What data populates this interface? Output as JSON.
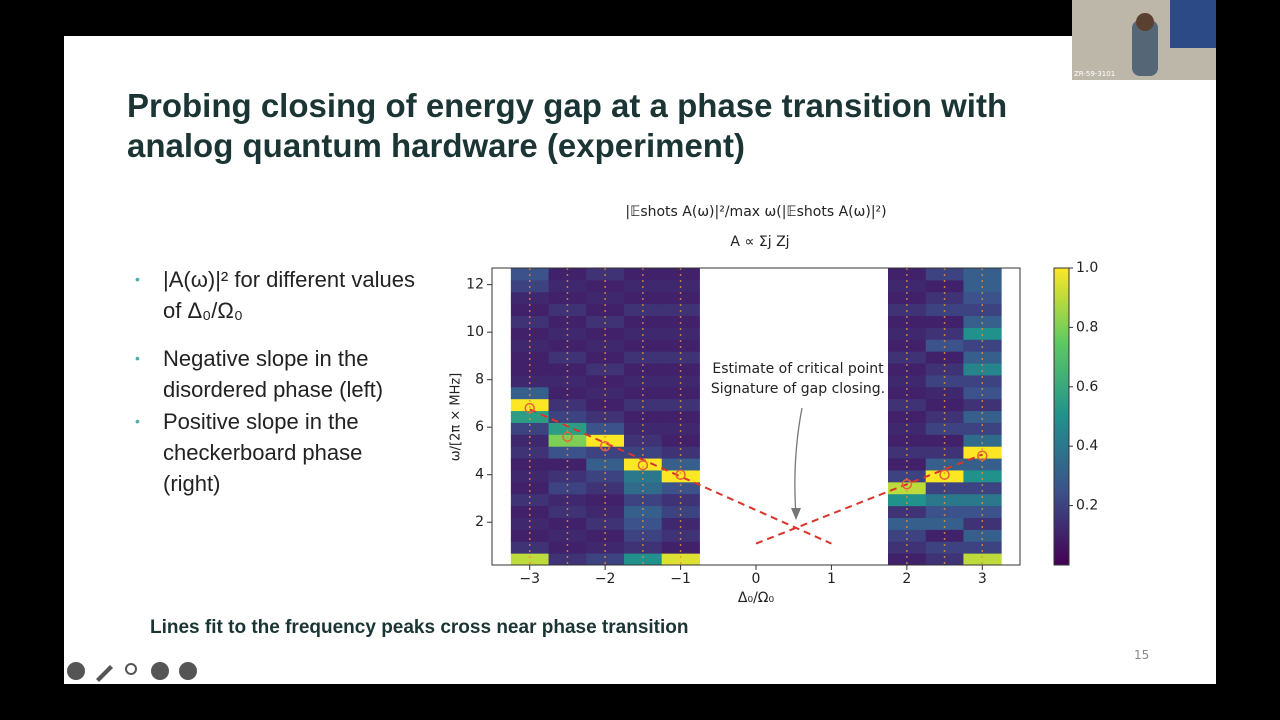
{
  "slide": {
    "title": "Probing closing of energy gap at a phase transition with analog quantum hardware (experiment)",
    "bullets": [
      "|A(ω)|² for different values of Δ₀/Ω₀",
      "Negative slope in the disordered phase (left)",
      "Positive slope in the checkerboard phase (right)"
    ],
    "caption": "Lines fit to the frequency peaks cross near phase transition",
    "page_number": "15",
    "camera_label": "ZR-59-3101"
  },
  "chart_data": {
    "type": "heatmap",
    "title": "|𝔼shots A(ω)|²/max ω(|𝔼shots A(ω)|²)",
    "subtitle": "A ∝ Σj Zj",
    "x_label": "Δ₀/Ω₀",
    "y_label": "ω/[2π × MHz]",
    "colormap": "viridis",
    "x": [
      -3,
      -2.5,
      -2,
      -1.5,
      -1,
      2,
      2.5,
      3
    ],
    "values": [
      [
        0.9,
        0.15,
        0.1,
        0.12,
        0.1,
        0.15,
        0.1,
        0.12,
        0.1,
        0.15,
        0.12,
        0.2,
        0.55,
        1.0,
        0.3,
        0.12,
        0.1,
        0.1,
        0.12,
        0.1,
        0.15,
        0.1,
        0.12,
        0.2,
        0.25
      ],
      [
        0.15,
        0.1,
        0.12,
        0.1,
        0.15,
        0.12,
        0.2,
        0.15,
        0.1,
        0.25,
        0.8,
        0.55,
        0.2,
        0.15,
        0.1,
        0.12,
        0.1,
        0.15,
        0.1,
        0.12,
        0.1,
        0.15,
        0.1,
        0.12,
        0.1
      ],
      [
        0.2,
        0.12,
        0.1,
        0.15,
        0.12,
        0.1,
        0.15,
        0.2,
        0.3,
        0.2,
        1.0,
        0.25,
        0.15,
        0.1,
        0.12,
        0.1,
        0.15,
        0.1,
        0.12,
        0.1,
        0.15,
        0.1,
        0.12,
        0.1,
        0.15
      ],
      [
        0.5,
        0.15,
        0.2,
        0.25,
        0.3,
        0.2,
        0.35,
        0.4,
        1.0,
        0.2,
        0.15,
        0.12,
        0.1,
        0.15,
        0.1,
        0.12,
        0.1,
        0.15,
        0.1,
        0.12,
        0.1,
        0.15,
        0.1,
        0.12,
        0.1
      ],
      [
        0.95,
        0.1,
        0.15,
        0.12,
        0.2,
        0.15,
        0.25,
        1.0,
        0.3,
        0.15,
        0.1,
        0.12,
        0.1,
        0.15,
        0.1,
        0.12,
        0.1,
        0.15,
        0.1,
        0.12,
        0.1,
        0.15,
        0.1,
        0.12,
        0.1
      ],
      [
        0.1,
        0.15,
        0.2,
        0.3,
        0.15,
        0.5,
        0.9,
        0.2,
        0.1,
        0.15,
        0.1,
        0.12,
        0.1,
        0.15,
        0.1,
        0.12,
        0.1,
        0.15,
        0.1,
        0.12,
        0.1,
        0.15,
        0.1,
        0.12,
        0.1
      ],
      [
        0.15,
        0.2,
        0.1,
        0.3,
        0.25,
        0.4,
        0.2,
        1.0,
        0.3,
        0.15,
        0.1,
        0.2,
        0.15,
        0.1,
        0.12,
        0.2,
        0.15,
        0.1,
        0.25,
        0.15,
        0.1,
        0.2,
        0.15,
        0.1,
        0.2
      ],
      [
        0.9,
        0.2,
        0.3,
        0.15,
        0.25,
        0.4,
        0.2,
        0.5,
        0.3,
        1.0,
        0.35,
        0.2,
        0.3,
        0.15,
        0.25,
        0.2,
        0.45,
        0.3,
        0.2,
        0.5,
        0.3,
        0.2,
        0.25,
        0.3,
        0.3
      ]
    ],
    "peaks": {
      "x": [
        -3,
        -2.5,
        -2,
        -1.5,
        -1,
        2,
        2.5,
        3
      ],
      "y": [
        6.8,
        5.6,
        5.2,
        4.4,
        4.0,
        3.6,
        4.0,
        4.8
      ],
      "color": "#e8603c"
    },
    "fit_lines": [
      {
        "x": [
          -3,
          1
        ],
        "y": [
          6.75,
          1.1
        ],
        "color": "#d9362b"
      },
      {
        "x": [
          0,
          3
        ],
        "y": [
          1.1,
          4.85
        ],
        "color": "#d9362b"
      }
    ],
    "annotation": [
      "Estimate of critical point",
      "Signature of gap closing."
    ],
    "xlim": [
      -3.5,
      3.5
    ],
    "ylim": [
      0.2,
      12.7
    ],
    "xticks": [
      {
        "value": -3,
        "label": "−3"
      },
      {
        "value": -2,
        "label": "−2"
      },
      {
        "value": -1,
        "label": "−1"
      },
      0,
      1,
      2,
      3
    ],
    "yticks": [
      2,
      4,
      6,
      8,
      10,
      12
    ],
    "clim": [
      0,
      1
    ],
    "cticks": [
      0.2,
      0.4,
      0.6,
      0.8,
      {
        "value": 1,
        "label": "1.0"
      }
    ]
  }
}
